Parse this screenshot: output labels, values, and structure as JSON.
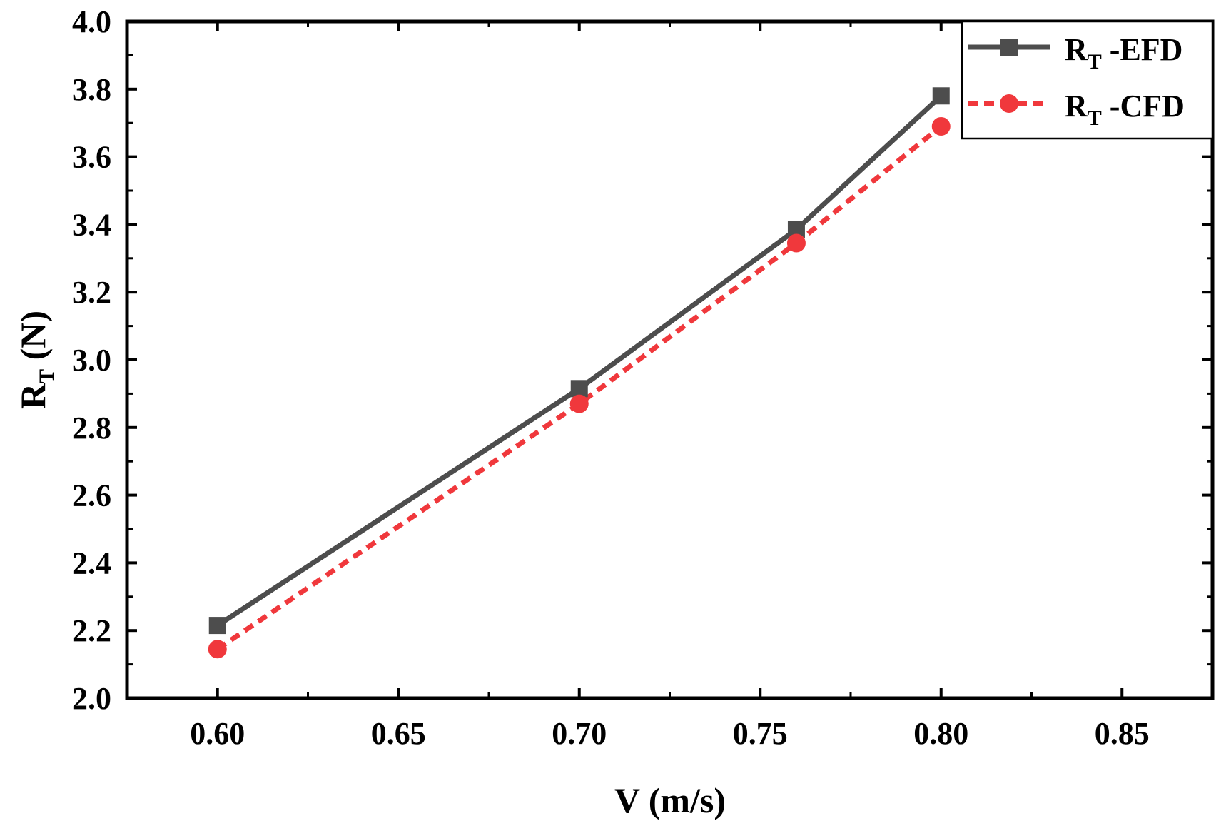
{
  "chart_data": {
    "type": "line",
    "title": "",
    "xlabel": "V (m/s)",
    "ylabel": {
      "main": "R",
      "sub": "T",
      "unit": " (N)"
    },
    "xlim": [
      0.575,
      0.875
    ],
    "ylim": [
      2.0,
      4.0
    ],
    "x_ticks": [
      0.6,
      0.65,
      0.7,
      0.75,
      0.8,
      0.85
    ],
    "x_tick_labels": [
      "0.60",
      "0.65",
      "0.70",
      "0.75",
      "0.80",
      "0.85"
    ],
    "y_ticks": [
      2.0,
      2.2,
      2.4,
      2.6,
      2.8,
      3.0,
      3.2,
      3.4,
      3.6,
      3.8,
      4.0
    ],
    "y_tick_labels": [
      "2.0",
      "2.2",
      "2.4",
      "2.6",
      "2.8",
      "3.0",
      "3.2",
      "3.4",
      "3.6",
      "3.8",
      "4.0"
    ],
    "grid": false,
    "legend_position": "top-right",
    "series": [
      {
        "name": "R_T -EFD",
        "legend_main": "R",
        "legend_sub": "T",
        "legend_suffix": " -EFD",
        "color": "#4d4d4d",
        "line_style": "solid",
        "marker": "square",
        "x": [
          0.6,
          0.7,
          0.76,
          0.8
        ],
        "values": [
          2.215,
          2.915,
          3.385,
          3.78
        ]
      },
      {
        "name": "R_T -CFD",
        "legend_main": "R",
        "legend_sub": "T",
        "legend_suffix": " -CFD",
        "color": "#f0383c",
        "line_style": "dashed",
        "marker": "circle",
        "x": [
          0.6,
          0.7,
          0.76,
          0.8
        ],
        "values": [
          2.145,
          2.87,
          3.345,
          3.69
        ]
      }
    ]
  }
}
